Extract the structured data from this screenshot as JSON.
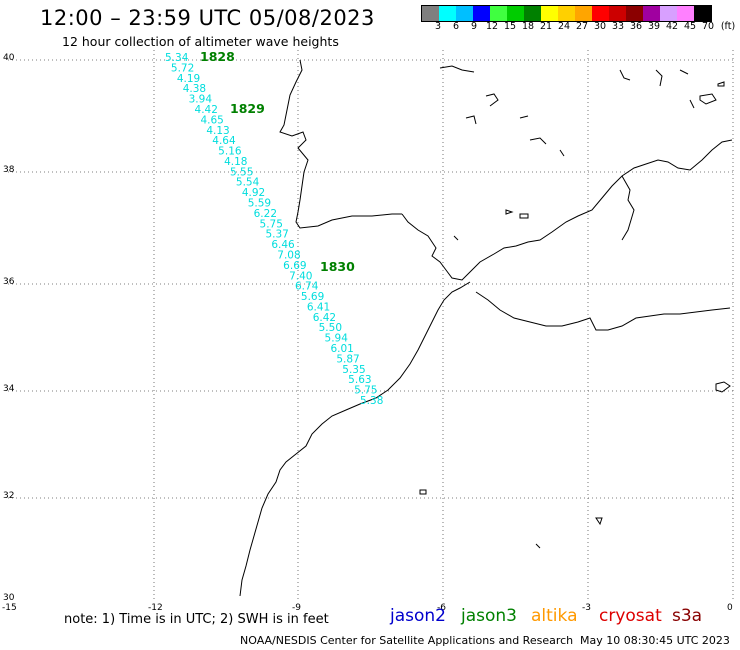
{
  "header": {
    "title": "12:00 – 23:59 UTC 05/08/2023",
    "subtitle": "12 hour collection of altimeter wave heights"
  },
  "colorbar": {
    "colors": [
      "#7f7f7f",
      "#00ffff",
      "#00bfff",
      "#0000ff",
      "#40ff40",
      "#00cc00",
      "#008000",
      "#ffff00",
      "#ffd000",
      "#ffa500",
      "#ff0000",
      "#cc0000",
      "#8b0000",
      "#a000a0",
      "#d8a0ff",
      "#ff80ff",
      "#000000"
    ],
    "ticks": [
      "3",
      "6",
      "9",
      "12",
      "15",
      "18",
      "21",
      "24",
      "27",
      "30",
      "33",
      "36",
      "39",
      "42",
      "45",
      "70",
      "(ft)"
    ]
  },
  "axes": {
    "lat_labels": [
      "40",
      "38",
      "36",
      "34",
      "32",
      "30"
    ],
    "lon_labels": [
      "-15",
      "-12",
      "-9",
      "-6",
      "-3",
      "0"
    ]
  },
  "track": {
    "color": "#00dddd",
    "values": [
      "5.34",
      "5.72",
      "4.19",
      "4.38",
      "3.94",
      "4.42",
      "4.65",
      "4.13",
      "4.64",
      "5.16",
      "4.18",
      "5.55",
      "5.54",
      "4.92",
      "5.59",
      "6.22",
      "5.75",
      "5.37",
      "6.46",
      "7.08",
      "6.69",
      "7.40",
      "6.74",
      "5.69",
      "6.41",
      "6.42",
      "5.50",
      "5.94",
      "6.01",
      "5.87",
      "5.35",
      "5.63",
      "5.75",
      "5.38"
    ],
    "time_labels": [
      "1828",
      "1829",
      "1830"
    ],
    "time_color": "#008000"
  },
  "footer": {
    "note": "note: 1) Time is in UTC; 2) SWH is in feet",
    "satellites": [
      {
        "name": "jason2",
        "color": "#0000cc"
      },
      {
        "name": "jason3",
        "color": "#008000"
      },
      {
        "name": "altika",
        "color": "#ff9900"
      },
      {
        "name": "cryosat",
        "color": "#dd0000"
      },
      {
        "name": "s3a",
        "color": "#880000"
      }
    ],
    "credit": "NOAA/NESDIS Center for Satellite Applications and Research",
    "timestamp": "May 10 08:30:45 UTC 2023"
  }
}
